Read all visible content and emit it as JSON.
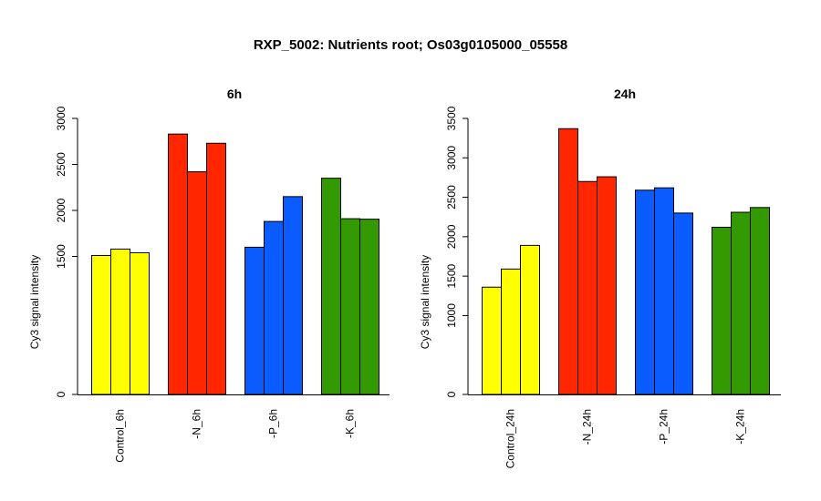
{
  "figure": {
    "title": "RXP_5002: Nutrients root; Os03g0105000_05558"
  },
  "colors": {
    "control": "#ffff00",
    "N": "#ff2600",
    "P": "#0a5cff",
    "K": "#339900",
    "bar_stroke": "#000000"
  },
  "chart_data": [
    {
      "type": "bar",
      "title": "6h",
      "ylabel": "Cy3 signal intensity",
      "ylim": [
        0,
        3000
      ],
      "yticks": [
        "0",
        "1500",
        "2000",
        "2500",
        "3000"
      ],
      "groups": [
        {
          "label": "Control_6h",
          "color_key": "control",
          "values": [
            1510,
            1580,
            1540
          ]
        },
        {
          "label": "-N_6h",
          "color_key": "N",
          "values": [
            2830,
            2420,
            2730
          ]
        },
        {
          "label": "-P_6h",
          "color_key": "P",
          "values": [
            1600,
            1880,
            2150
          ]
        },
        {
          "label": "-K_6h",
          "color_key": "K",
          "values": [
            2350,
            1910,
            1905
          ]
        }
      ]
    },
    {
      "type": "bar",
      "title": "24h",
      "ylabel": "Cy3 signal intensity",
      "ylim": [
        0,
        3500
      ],
      "yticks": [
        "0",
        "1000",
        "1500",
        "2000",
        "2500",
        "3000",
        "3500"
      ],
      "groups": [
        {
          "label": "Control_24h",
          "color_key": "control",
          "values": [
            1360,
            1590,
            1890
          ]
        },
        {
          "label": "-N_24h",
          "color_key": "N",
          "values": [
            3370,
            2700,
            2760
          ]
        },
        {
          "label": "-P_24h",
          "color_key": "P",
          "values": [
            2590,
            2620,
            2300
          ]
        },
        {
          "label": "-K_24h",
          "color_key": "K",
          "values": [
            2120,
            2310,
            2370
          ]
        }
      ]
    }
  ]
}
